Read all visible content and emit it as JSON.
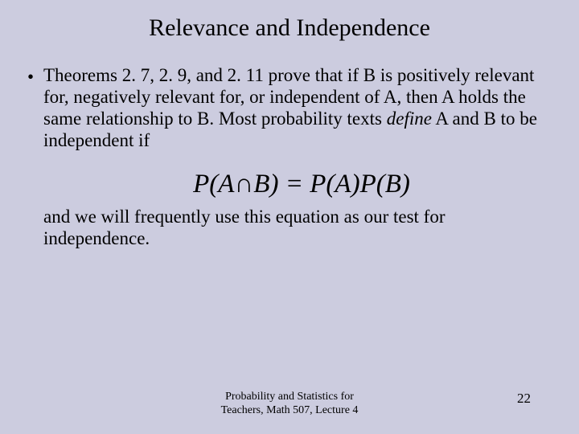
{
  "background_color": "#ccccdf",
  "text_color": "#000000",
  "title": {
    "text": "Relevance and Independence",
    "fontsize": 30
  },
  "bullet": {
    "mark": "•",
    "text_before_italic": "Theorems 2. 7, 2. 9, and 2. 11 prove that if B is positively relevant for, negatively relevant for, or independent of A, then A holds the same relationship to B. Most probability texts ",
    "italic_word": "define",
    "text_after_italic": " A and B to be independent if"
  },
  "equation": {
    "html": "P(A &cap; B) = P(A)P(B)",
    "fontsize": 33
  },
  "continuation": "and we will frequently use this equation as our test for independence.",
  "footer": {
    "line1": "Probability and Statistics for",
    "line2": "Teachers, Math 507, Lecture 4",
    "page": "22"
  }
}
